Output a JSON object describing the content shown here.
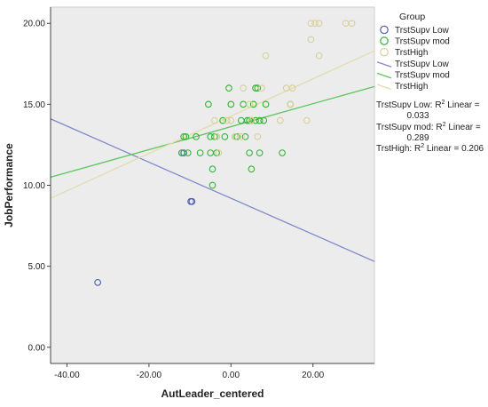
{
  "chart_data": {
    "type": "scatter",
    "title": "",
    "xlabel": "AutLeader_centered",
    "ylabel": "JobPerformance",
    "xlim": [
      -44,
      35
    ],
    "ylim": [
      -1,
      21
    ],
    "xticks": [
      -40,
      -20,
      0,
      20
    ],
    "xtick_labels": [
      "-40.00",
      "-20.00",
      "0.00",
      "20.00"
    ],
    "yticks": [
      0,
      5,
      10,
      15,
      20
    ],
    "ytick_labels": [
      "0.00",
      "5.00",
      "10.00",
      "15.00",
      "20.00"
    ],
    "grid": false,
    "plot_background": "#ececec",
    "legend": {
      "title": "Group",
      "placement": "right",
      "entries": [
        {
          "label": "TrstSupv Low",
          "kind": "marker",
          "color": "#4f5fb0"
        },
        {
          "label": "TrstSupv mod",
          "kind": "marker",
          "color": "#36b336"
        },
        {
          "label": "TrstHigh",
          "kind": "marker",
          "color": "#d8d09a"
        },
        {
          "label": "TrstSupv Low",
          "kind": "line",
          "color": "#7d89c8"
        },
        {
          "label": "TrstSupv mod",
          "kind": "line",
          "color": "#5cc65c"
        },
        {
          "label": "TrstHigh",
          "kind": "line",
          "color": "#e2dcae"
        }
      ]
    },
    "fit_labels": [
      {
        "prefix": "TrstSupv Low: R",
        "sup": "2",
        "mid": " Linear =",
        "value": "0.033"
      },
      {
        "prefix": "TrstSupv mod: R",
        "sup": "2",
        "mid": " Linear =",
        "value": "0.289"
      },
      {
        "prefix": "TrstHigh: R",
        "sup": "2",
        "mid": " Linear = 0.206",
        "value": ""
      }
    ],
    "series": [
      {
        "name": "TrstSupv Low",
        "color": "#4f5fb0",
        "points": [
          [
            -32.5,
            4
          ],
          [
            -12,
            12
          ],
          [
            -11.5,
            12
          ],
          [
            -9.8,
            9
          ],
          [
            -9.5,
            9
          ]
        ],
        "fit": {
          "x": [
            -44,
            35
          ],
          "y": [
            14.1,
            5.3
          ]
        }
      },
      {
        "name": "TrstSupv mod",
        "color": "#36b336",
        "points": [
          [
            -12,
            12
          ],
          [
            -11.5,
            13
          ],
          [
            -11,
            13
          ],
          [
            -10.5,
            12
          ],
          [
            -8.5,
            13
          ],
          [
            -7.5,
            12
          ],
          [
            -5.5,
            15
          ],
          [
            -5,
            13
          ],
          [
            -5,
            12
          ],
          [
            -4.5,
            11
          ],
          [
            -4.5,
            10
          ],
          [
            -4,
            13
          ],
          [
            -3.5,
            12
          ],
          [
            -3.5,
            13
          ],
          [
            -2,
            14
          ],
          [
            -1.5,
            13
          ],
          [
            -0.5,
            16
          ],
          [
            0,
            15
          ],
          [
            1,
            13
          ],
          [
            1.5,
            13
          ],
          [
            2.5,
            14
          ],
          [
            3,
            15
          ],
          [
            3.5,
            13
          ],
          [
            4,
            14
          ],
          [
            4.5,
            14
          ],
          [
            4.5,
            12
          ],
          [
            5,
            11
          ],
          [
            5,
            14
          ],
          [
            5.5,
            15
          ],
          [
            6,
            14
          ],
          [
            6,
            16
          ],
          [
            6.5,
            16
          ],
          [
            7,
            14
          ],
          [
            7,
            12
          ],
          [
            8,
            14
          ],
          [
            8.5,
            15
          ],
          [
            12.5,
            12
          ],
          [
            14.5,
            15
          ]
        ],
        "fit": {
          "x": [
            -44,
            35
          ],
          "y": [
            10.5,
            16.1
          ]
        }
      },
      {
        "name": "TrstHigh",
        "color": "#d8d09a",
        "points": [
          [
            -4,
            14
          ],
          [
            -3.5,
            13
          ],
          [
            -3,
            12
          ],
          [
            -1,
            14
          ],
          [
            0,
            14
          ],
          [
            1,
            13
          ],
          [
            2.5,
            13
          ],
          [
            3,
            16
          ],
          [
            4.5,
            15
          ],
          [
            5,
            14
          ],
          [
            6.5,
            13
          ],
          [
            7.5,
            16
          ],
          [
            8.5,
            18
          ],
          [
            12,
            14
          ],
          [
            13.5,
            16
          ],
          [
            14.5,
            15
          ],
          [
            15,
            16
          ],
          [
            18.5,
            14
          ],
          [
            19.5,
            20
          ],
          [
            19.5,
            19
          ],
          [
            20.5,
            20
          ],
          [
            21.5,
            20
          ],
          [
            21.5,
            18
          ],
          [
            28,
            20
          ],
          [
            29.5,
            20
          ]
        ],
        "fit": {
          "x": [
            -44,
            35
          ],
          "y": [
            9.2,
            18.3
          ]
        }
      }
    ]
  }
}
